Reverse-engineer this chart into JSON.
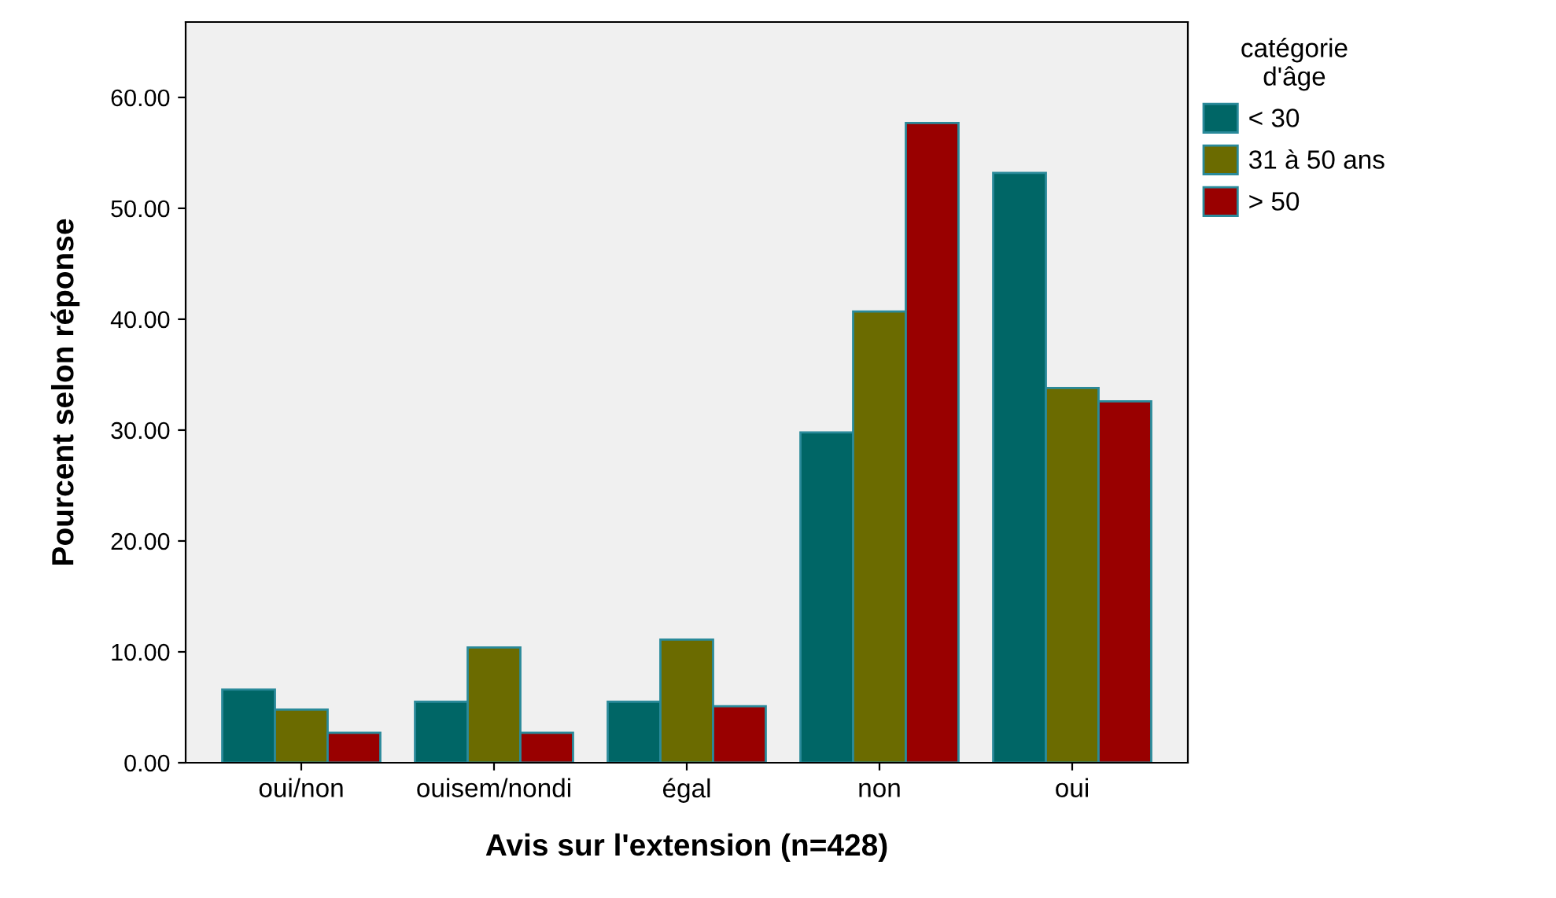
{
  "chart_data": {
    "type": "bar",
    "xlabel": "Avis sur l'extension (n=428)",
    "ylabel": "Pourcent selon réponse",
    "legend_title": "catégorie\nd'âge",
    "categories": [
      "oui/non",
      "ouisem/nondi",
      "égal",
      "non",
      "oui"
    ],
    "series": [
      {
        "name": "< 30",
        "color": "#006666",
        "values": [
          6.6,
          5.5,
          5.5,
          29.8,
          53.2
        ]
      },
      {
        "name": "31 à 50 ans",
        "color": "#6b6b00",
        "values": [
          4.8,
          10.4,
          11.1,
          40.7,
          33.8
        ]
      },
      {
        "name": "> 50",
        "color": "#990000",
        "values": [
          2.7,
          2.7,
          5.1,
          57.7,
          32.6
        ]
      }
    ],
    "ylim": [
      0,
      66.8
    ],
    "yticks": [
      {
        "value": 0,
        "label": "0.00"
      },
      {
        "value": 10,
        "label": "10.00"
      },
      {
        "value": 20,
        "label": "20.00"
      },
      {
        "value": 30,
        "label": "30.00"
      },
      {
        "value": 40,
        "label": "40.00"
      },
      {
        "value": 50,
        "label": "50.00"
      },
      {
        "value": 60,
        "label": "60.00"
      }
    ],
    "grid": false,
    "legend": "right"
  }
}
